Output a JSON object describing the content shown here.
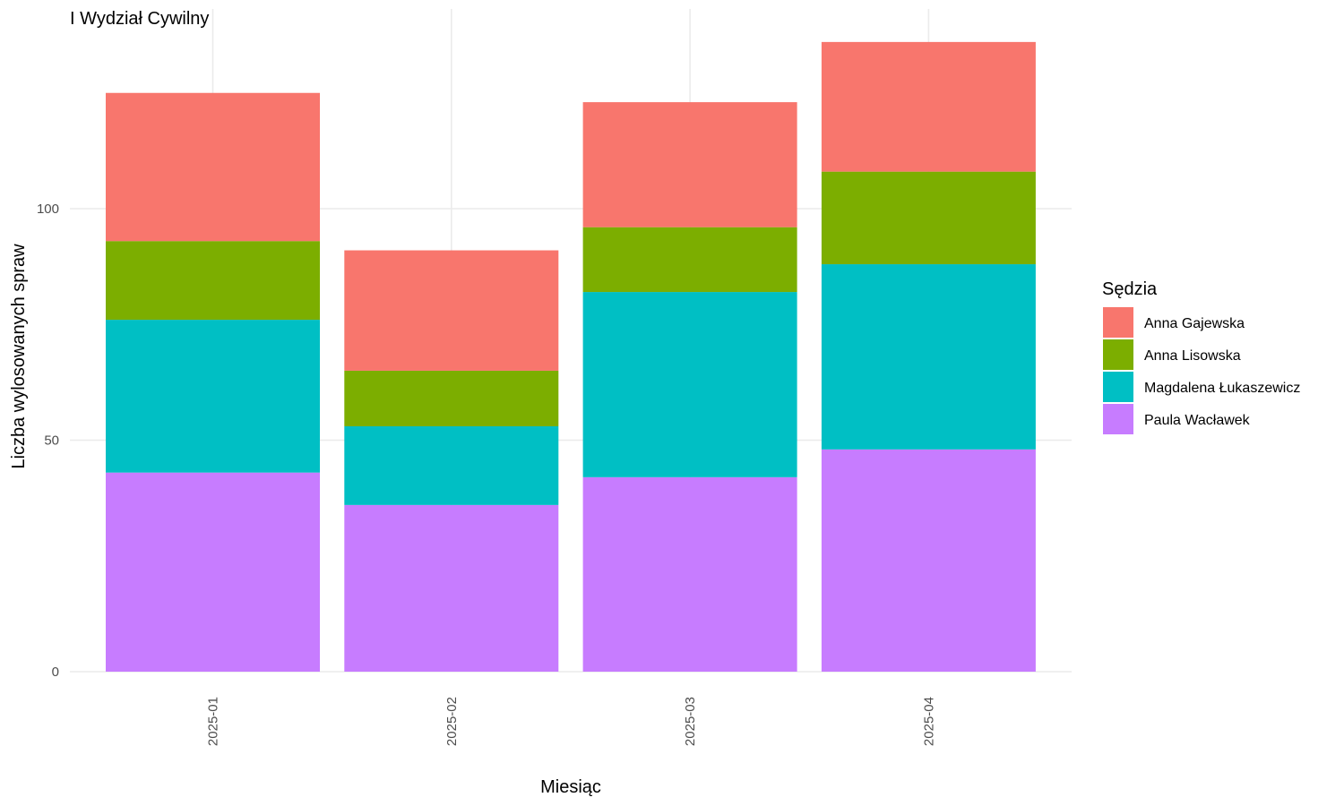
{
  "chart_data": {
    "type": "bar",
    "stacked": true,
    "title": "I Wydział Cywilny",
    "xlabel": "Miesiąc",
    "ylabel": "Liczba wylosowanych spraw",
    "categories": [
      "2025-01",
      "2025-02",
      "2025-03",
      "2025-04"
    ],
    "yticks": [
      0,
      50,
      100
    ],
    "ylim": [
      0,
      138
    ],
    "grid": true,
    "legend": {
      "title": "Sędzia",
      "position": "right"
    },
    "series": [
      {
        "name": "Paula Wacławek",
        "color": "#C77CFF",
        "values": [
          43,
          36,
          42,
          48
        ]
      },
      {
        "name": "Magdalena Łukaszewicz",
        "color": "#00BFC4",
        "values": [
          33,
          17,
          40,
          40
        ]
      },
      {
        "name": "Anna Lisowska",
        "color": "#7CAE00",
        "values": [
          17,
          12,
          14,
          20
        ]
      },
      {
        "name": "Anna Gajewska",
        "color": "#F8766D",
        "values": [
          32,
          26,
          27,
          28
        ]
      }
    ],
    "legend_order": [
      "Anna Gajewska",
      "Anna Lisowska",
      "Magdalena Łukaszewicz",
      "Paula Wacławek"
    ]
  }
}
